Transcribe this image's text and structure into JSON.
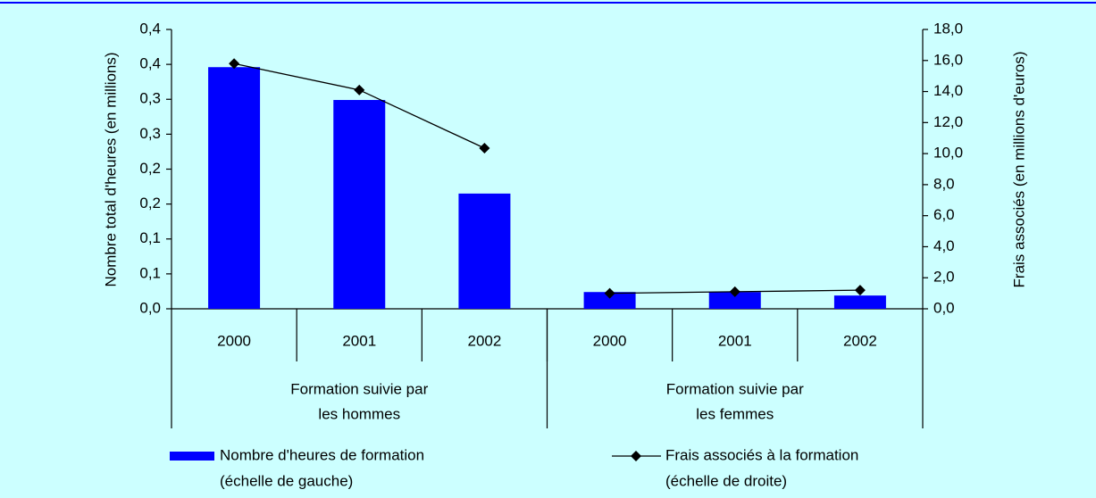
{
  "chart_data": {
    "type": "bar",
    "categories": [
      "2000",
      "2001",
      "2002",
      "2000",
      "2001",
      "2002"
    ],
    "groups": [
      {
        "label": [
          "Formation suivie par",
          "les hommes"
        ],
        "size": 3
      },
      {
        "label": [
          "Formation suivie par",
          "les femmes"
        ],
        "size": 3
      }
    ],
    "ylabel": "Nombre total d'heures (en millions)",
    "y2label": "Frais associés (en millions d'euros)",
    "ylim": [
      0,
      0.4
    ],
    "yticks": [
      {
        "value": 0,
        "label": "0,0"
      },
      {
        "value": 0.05,
        "label": "0,1"
      },
      {
        "value": 0.1,
        "label": "0,1"
      },
      {
        "value": 0.15,
        "label": "0,2"
      },
      {
        "value": 0.2,
        "label": "0,2"
      },
      {
        "value": 0.25,
        "label": "0,3"
      },
      {
        "value": 0.3,
        "label": "0,3"
      },
      {
        "value": 0.35,
        "label": "0,4"
      },
      {
        "value": 0.4,
        "label": "0,4"
      }
    ],
    "y2lim": [
      0,
      18
    ],
    "y2ticks": [
      {
        "value": 0,
        "label": "0,0"
      },
      {
        "value": 2,
        "label": "2,0"
      },
      {
        "value": 4,
        "label": "4,0"
      },
      {
        "value": 6,
        "label": "6,0"
      },
      {
        "value": 8,
        "label": "8,0"
      },
      {
        "value": 10,
        "label": "10,0"
      },
      {
        "value": 12,
        "label": "12,0"
      },
      {
        "value": 14,
        "label": "14,0"
      },
      {
        "value": 16,
        "label": "16,0"
      },
      {
        "value": 18,
        "label": "18,0"
      }
    ],
    "series": [
      {
        "name": [
          "Nombre d'heures de formation",
          "(échelle de gauche)"
        ],
        "type": "bar",
        "color": "#0000ff",
        "values": [
          0.346,
          0.299,
          0.165,
          0.024,
          0.024,
          0.019
        ]
      },
      {
        "name": [
          "Frais associés à la formation",
          "(échelle de droite)"
        ],
        "type": "line",
        "axis": "y2",
        "color": "#000000",
        "values": [
          15.8,
          14.1,
          10.35,
          1.0,
          1.1,
          1.2
        ]
      }
    ]
  }
}
